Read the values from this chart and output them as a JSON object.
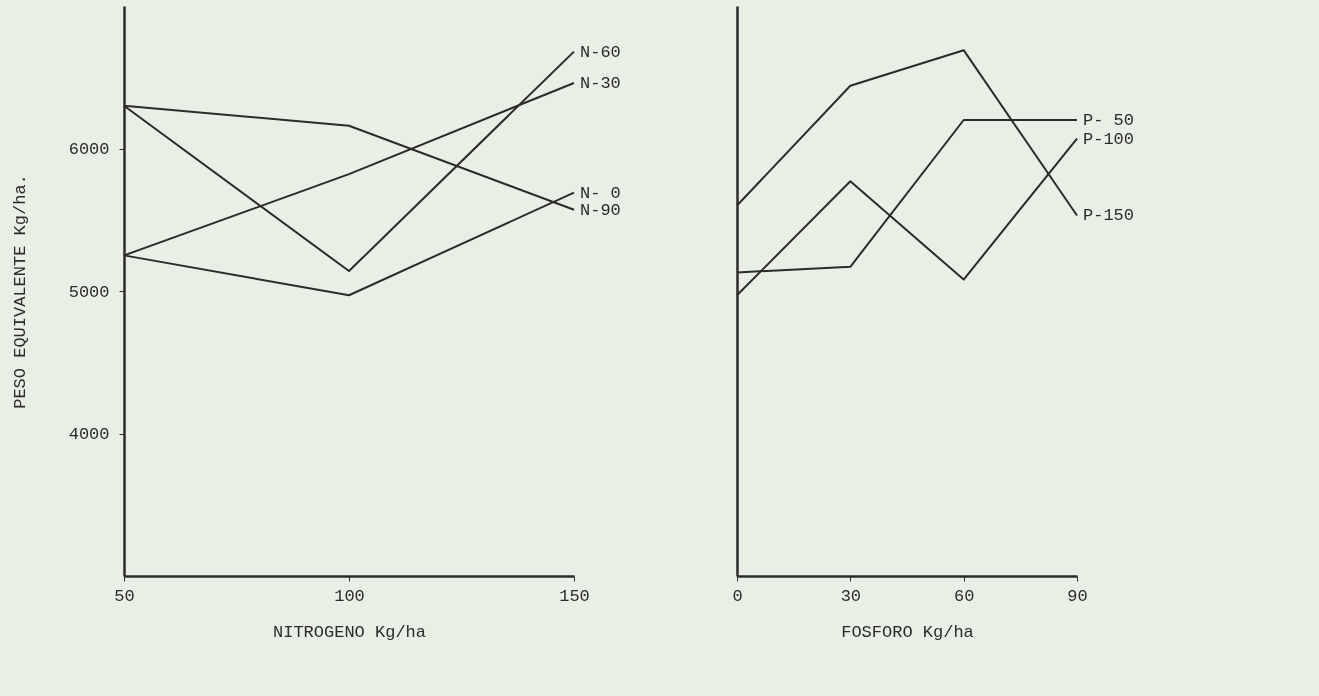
{
  "chart_data": [
    {
      "type": "line",
      "xlabel": "NITROGENO Kg/ha",
      "ylabel": "PESO EQUIVALENTE Kg/ha.",
      "x": [
        50,
        100,
        150
      ],
      "xlim": [
        50,
        150
      ],
      "xticks": [
        50,
        100,
        150
      ],
      "ylim": [
        3000,
        7000
      ],
      "yticks": [
        4000,
        5000,
        6000
      ],
      "series": [
        {
          "name": "N-60",
          "color": "#2b2b2b",
          "values": [
            6300,
            5140,
            6680
          ]
        },
        {
          "name": "N-30",
          "color": "#2b2b2b",
          "values": [
            5250,
            5820,
            6460
          ]
        },
        {
          "name": "N- 0",
          "color": "#2b2b2b",
          "values": [
            5250,
            4970,
            5690
          ]
        },
        {
          "name": "N-90",
          "color": "#2b2b2b",
          "values": [
            6300,
            6160,
            5570
          ]
        }
      ]
    },
    {
      "type": "line",
      "xlabel": "FOSFORO Kg/ha",
      "x": [
        0,
        30,
        60,
        90
      ],
      "xlim": [
        0,
        90
      ],
      "xticks": [
        0,
        30,
        60,
        90
      ],
      "ylim": [
        3000,
        7000
      ],
      "tick_labels": "x",
      "series": [
        {
          "name": "P- 50",
          "color": "#2b2b2b",
          "values": [
            5130,
            5170,
            6200,
            6200
          ]
        },
        {
          "name": "P-100",
          "color": "#2b2b2b",
          "values": [
            4970,
            5770,
            5080,
            6070
          ]
        },
        {
          "name": "P-150",
          "color": "#2b2b2b",
          "values": [
            5600,
            6440,
            6690,
            5530
          ]
        }
      ]
    }
  ]
}
